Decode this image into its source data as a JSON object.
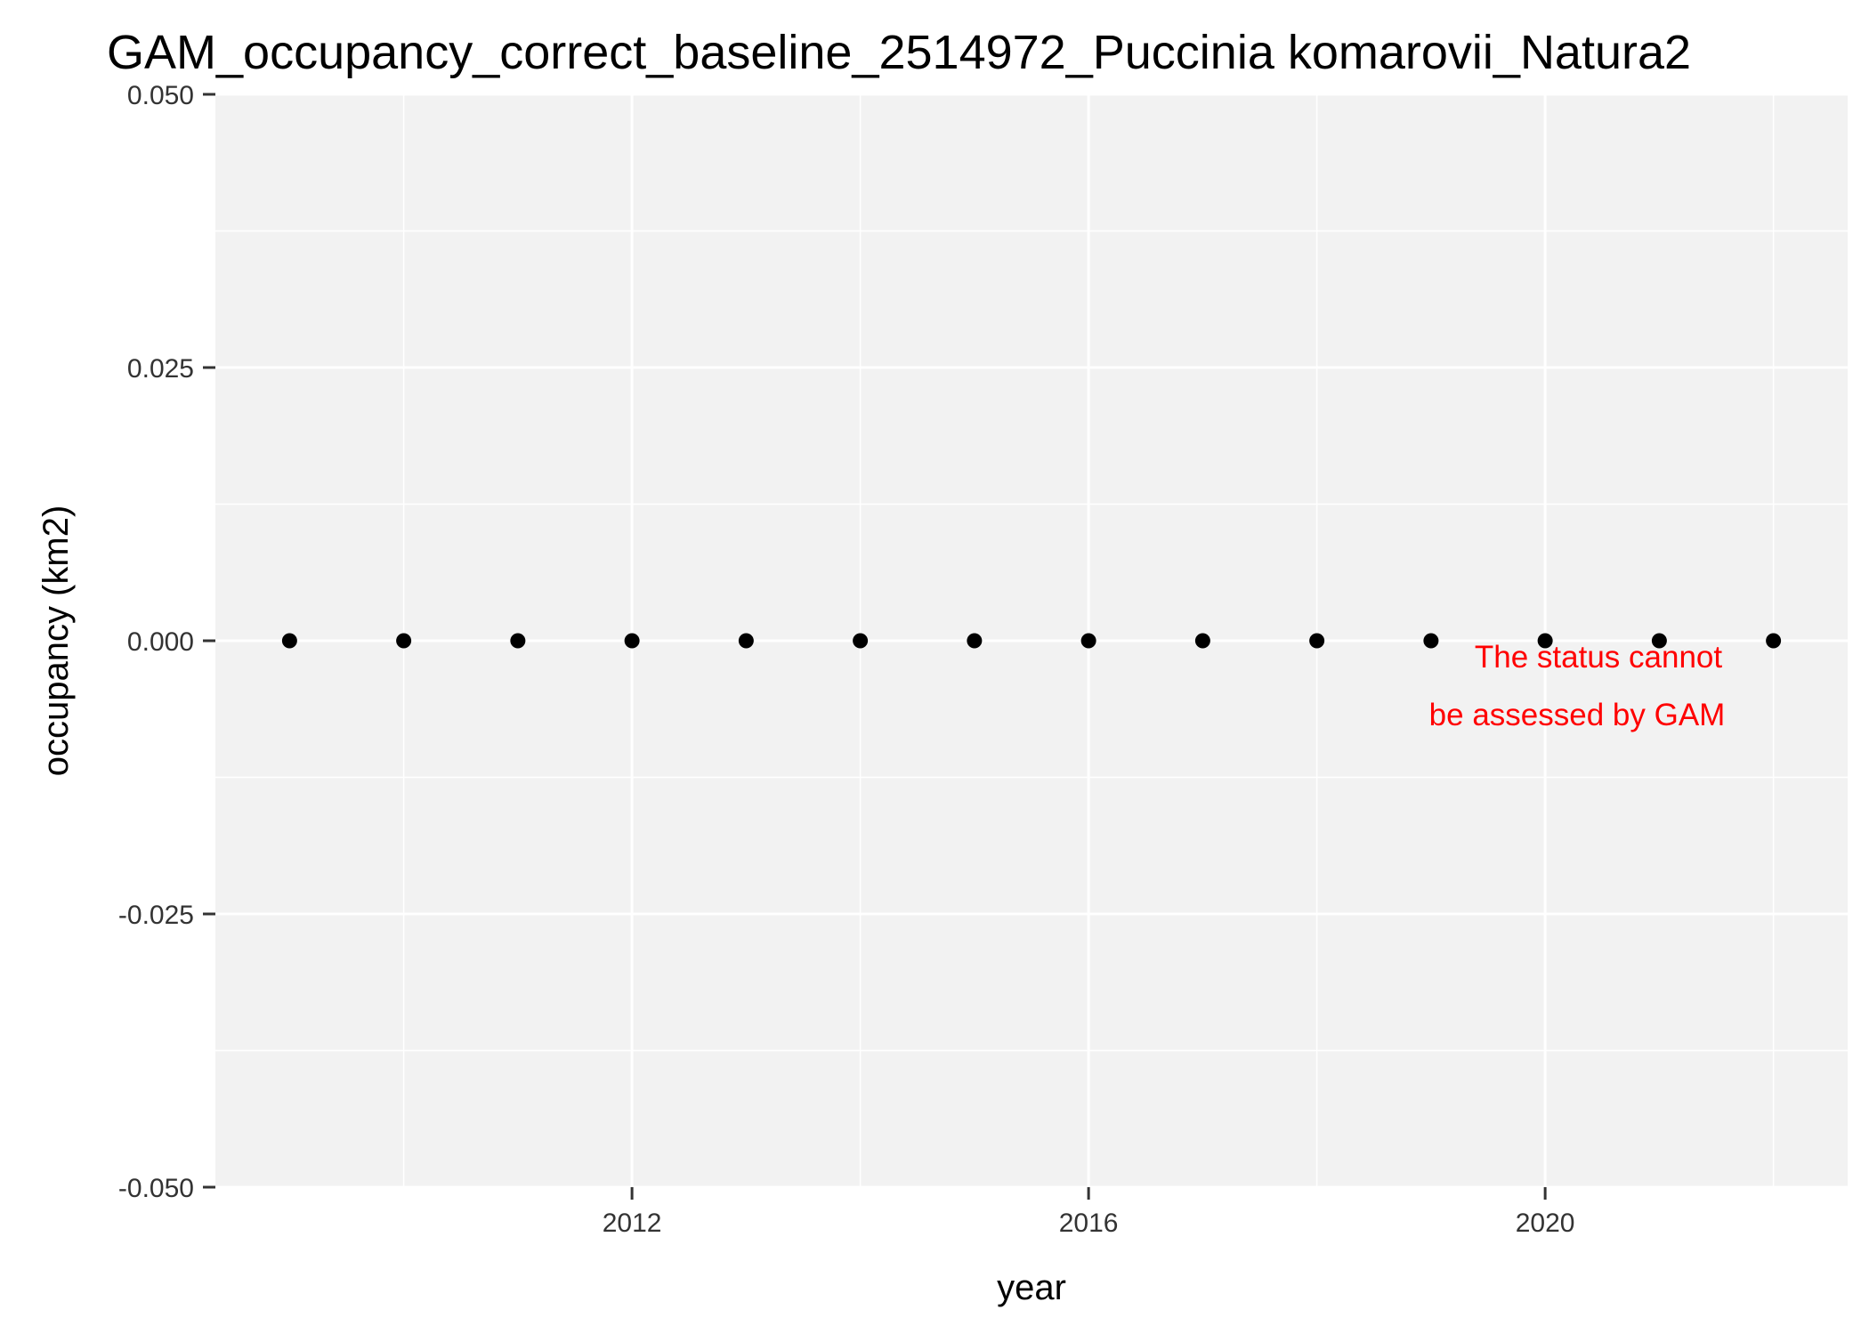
{
  "chart_data": {
    "type": "scatter",
    "title": "GAM_occupancy_correct_baseline_2514972_Puccinia komarovii_Natura2",
    "xlabel": "year",
    "ylabel": "occupancy (km2)",
    "x": [
      2009,
      2010,
      2011,
      2012,
      2013,
      2014,
      2015,
      2016,
      2017,
      2018,
      2019,
      2020,
      2021,
      2022
    ],
    "y": [
      0,
      0,
      0,
      0,
      0,
      0,
      0,
      0,
      0,
      0,
      0,
      0,
      0,
      0
    ],
    "xlim": [
      2008.35,
      2022.65
    ],
    "ylim": [
      -0.05,
      0.05
    ],
    "x_ticks": [
      2012,
      2016,
      2020
    ],
    "x_tick_labels": [
      "2012",
      "2016",
      "2020"
    ],
    "y_ticks": [
      -0.05,
      -0.025,
      0,
      0.025,
      0.05
    ],
    "y_tick_labels": [
      "-0.050",
      "-0.025",
      "0.000",
      "0.025",
      "0.050"
    ],
    "grid": true,
    "point_color": "#000000",
    "panel_background": "#f2f2f2",
    "annotation": {
      "lines": [
        "The status cannot",
        "be assessed by GAM"
      ],
      "color": "#ff0000"
    }
  }
}
